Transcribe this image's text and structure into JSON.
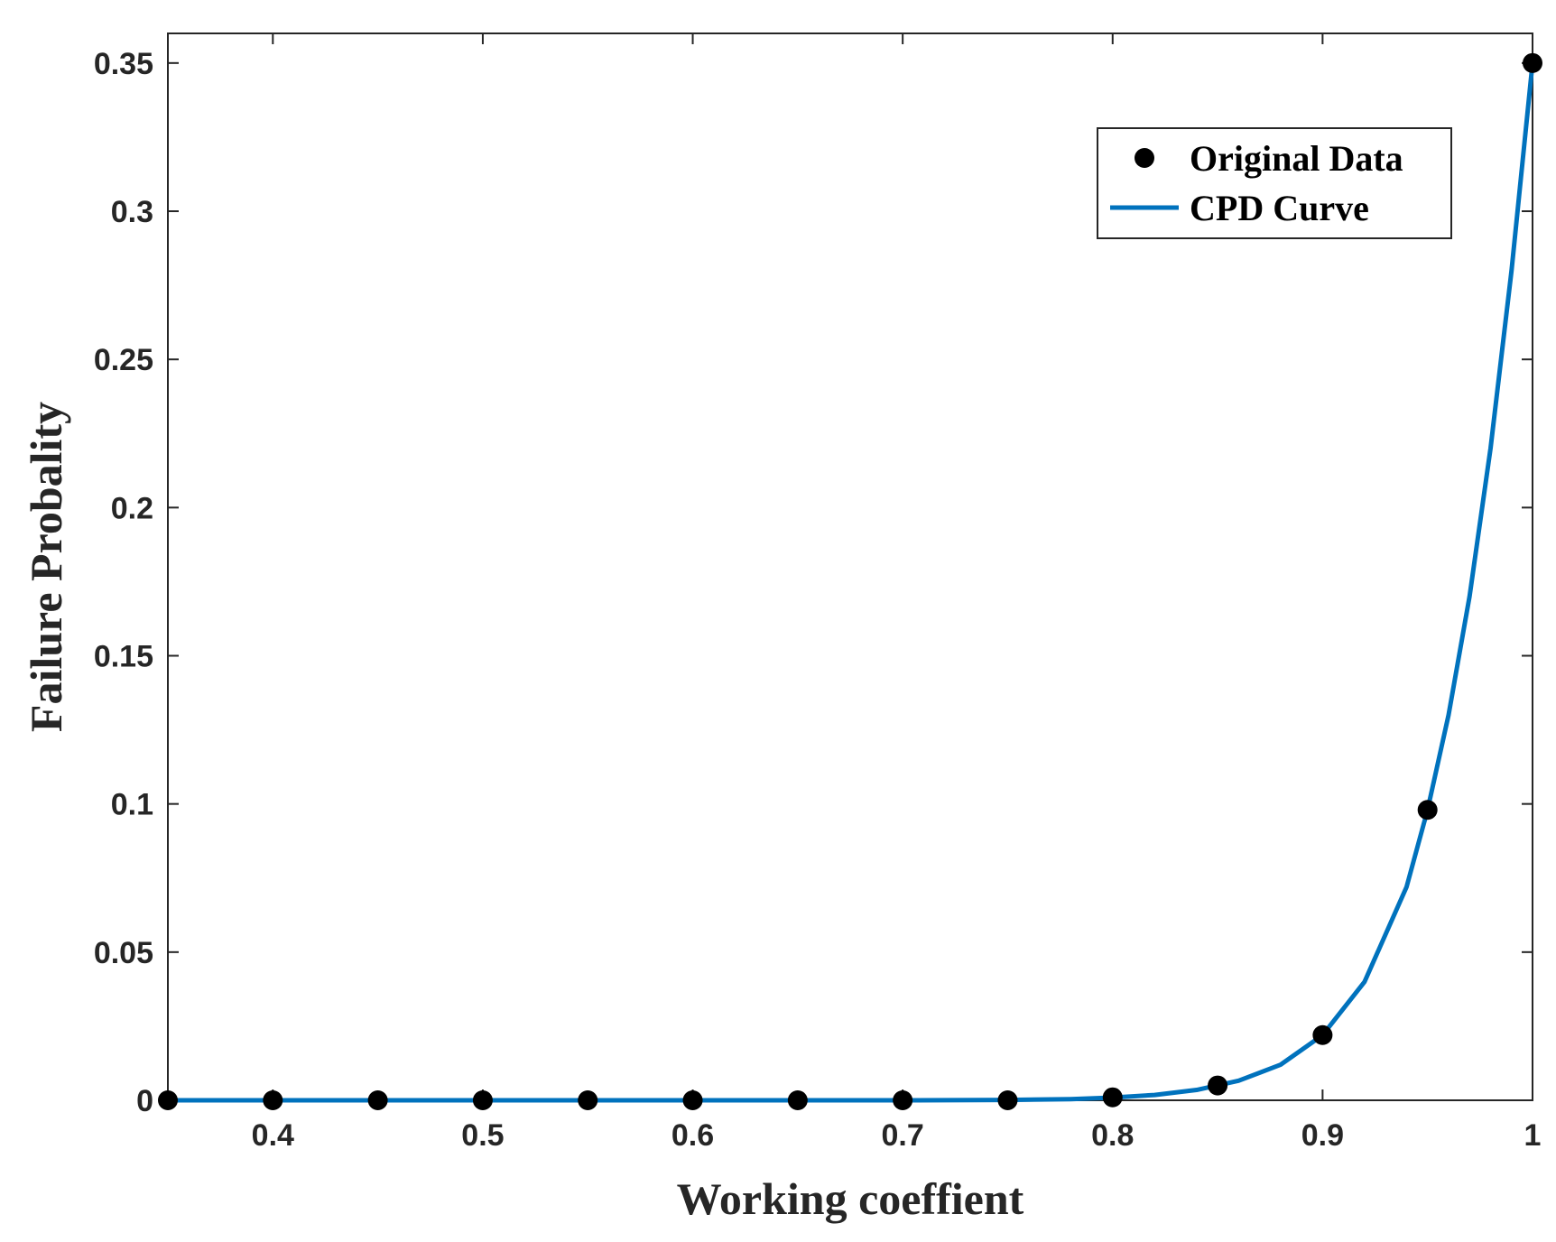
{
  "chart_data": {
    "type": "line",
    "title": "",
    "xlabel": "Working coeffient",
    "ylabel": "Failure Probality",
    "xlim": [
      0.35,
      1.0
    ],
    "ylim": [
      0,
      0.36
    ],
    "xticks": [
      0.4,
      0.5,
      0.6,
      0.7,
      0.8,
      0.9,
      1.0
    ],
    "xtick_labels": [
      "0.4",
      "0.5",
      "0.6",
      "0.7",
      "0.8",
      "0.9",
      "1"
    ],
    "yticks": [
      0,
      0.05,
      0.1,
      0.15,
      0.2,
      0.25,
      0.3,
      0.35
    ],
    "ytick_labels": [
      "0",
      "0.05",
      "0.1",
      "0.15",
      "0.2",
      "0.25",
      "0.3",
      "0.35"
    ],
    "grid": false,
    "legend_position": "top-right",
    "series": [
      {
        "name": "Original Data",
        "kind": "scatter",
        "color": "#000000",
        "x": [
          0.35,
          0.4,
          0.45,
          0.5,
          0.55,
          0.6,
          0.65,
          0.7,
          0.75,
          0.8,
          0.85,
          0.9,
          0.95,
          1.0
        ],
        "y": [
          0,
          0,
          0,
          0,
          0,
          0,
          0,
          0,
          0,
          0.001,
          0.005,
          0.022,
          0.098,
          0.35
        ]
      },
      {
        "name": "CPD Curve",
        "kind": "line",
        "color": "#0072BD",
        "x": [
          0.35,
          0.4,
          0.45,
          0.5,
          0.55,
          0.6,
          0.65,
          0.7,
          0.75,
          0.78,
          0.8,
          0.82,
          0.84,
          0.86,
          0.88,
          0.9,
          0.92,
          0.94,
          0.95,
          0.96,
          0.97,
          0.98,
          0.99,
          1.0
        ],
        "y": [
          0,
          0,
          0,
          0,
          0,
          0,
          0,
          0,
          0.0001,
          0.0004,
          0.0009,
          0.0018,
          0.0035,
          0.0066,
          0.012,
          0.022,
          0.04,
          0.072,
          0.098,
          0.13,
          0.17,
          0.22,
          0.28,
          0.35
        ]
      }
    ]
  }
}
